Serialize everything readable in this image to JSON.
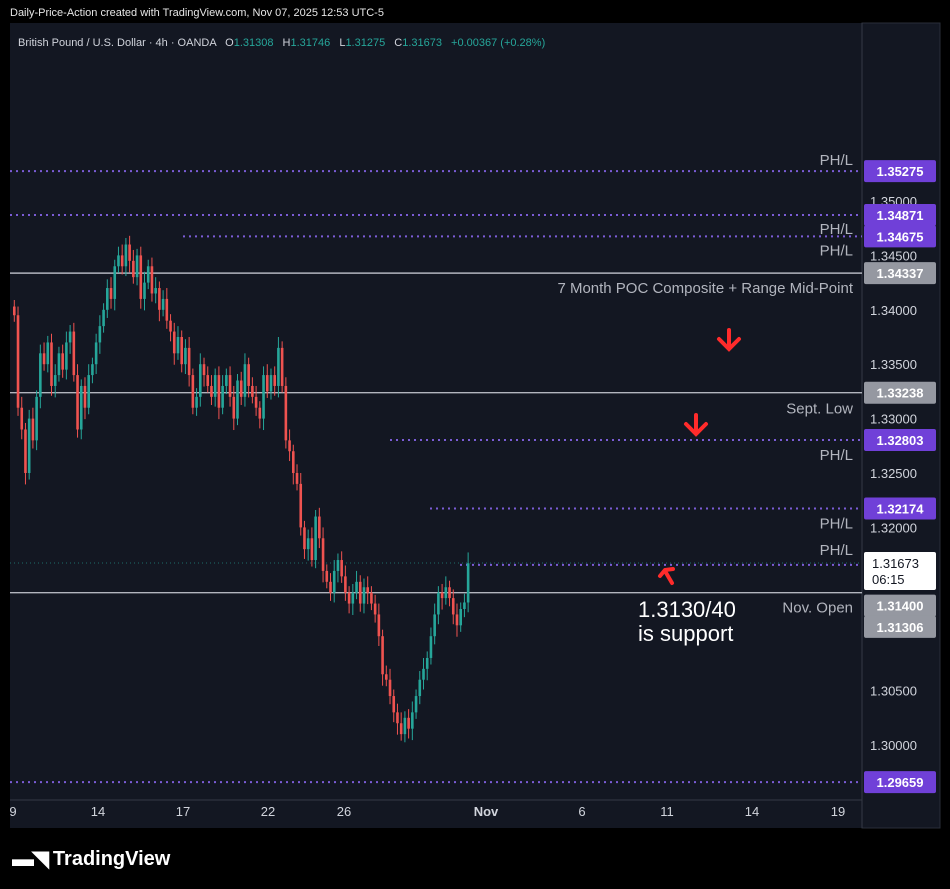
{
  "header": {
    "caption": "Daily-Price-Action created with TradingView.com, Nov 07, 2025 12:53 UTC-5"
  },
  "legend": {
    "symbol": "British Pound / U.S. Dollar · 4h · OANDA",
    "o_label": "O",
    "o_val": "1.31308",
    "h_label": "H",
    "h_val": "1.31746",
    "l_label": "L",
    "l_val": "1.31275",
    "c_label": "C",
    "c_val": "1.31673",
    "change": "+0.00367 (+0.28%)"
  },
  "footer": {
    "brand": "TradingView"
  },
  "colors": {
    "background": "#131722",
    "up": "#26a69a",
    "down": "#ef5350",
    "level_purple": "#7b5cd6",
    "level_gray": "#b2b5be",
    "annotation_red": "#ff2b2b"
  },
  "chart_data": {
    "type": "candlestick",
    "timeframe": "4h",
    "ylim": [
      1.2955,
      1.3535
    ],
    "yticks": [
      "1.35000",
      "1.34500",
      "1.34000",
      "1.33500",
      "1.33000",
      "1.32500",
      "1.32000",
      "1.30500",
      "1.30000"
    ],
    "xticks": [
      "9",
      "14",
      "17",
      "22",
      "26",
      "Nov",
      "6",
      "11",
      "14",
      "19"
    ],
    "current_price": "1.31673",
    "countdown": "06:15",
    "levels": [
      {
        "price": 1.35275,
        "label": "1.35275",
        "note": "PH/L",
        "style": "purple-dotted"
      },
      {
        "price": 1.34871,
        "label": "1.34871",
        "note": "PH/L",
        "style": "purple-dotted"
      },
      {
        "price": 1.34675,
        "label": "1.34675",
        "note": "PH/L",
        "style": "purple-dotted"
      },
      {
        "price": 1.34337,
        "label": "1.34337",
        "note": "7 Month POC Composite + Range Mid-Point",
        "style": "gray-solid"
      },
      {
        "price": 1.33238,
        "label": "1.33238",
        "note": "Sept. Low",
        "style": "gray-solid"
      },
      {
        "price": 1.32803,
        "label": "1.32803",
        "note": "PH/L",
        "style": "purple-dotted"
      },
      {
        "price": 1.32174,
        "label": "1.32174",
        "note": "PH/L",
        "style": "purple-dotted"
      },
      {
        "price": 1.31655,
        "label": "1.31655",
        "note": "PH/L",
        "style": "purple-dotted"
      },
      {
        "price": 1.314,
        "label": "1.31400",
        "note": "Nov. Open",
        "style": "gray-solid"
      },
      {
        "price": 1.31306,
        "label": "1.31306",
        "note": "",
        "style": "gray-box"
      },
      {
        "price": 1.29659,
        "label": "1.29659",
        "note": "",
        "style": "purple-dotted"
      }
    ],
    "annotation": [
      "1.3130/40",
      "is support"
    ],
    "closes": [
      1.3395,
      1.331,
      1.329,
      1.325,
      1.33,
      1.328,
      1.332,
      1.336,
      1.335,
      1.337,
      1.333,
      1.334,
      1.336,
      1.3345,
      1.337,
      1.338,
      1.334,
      1.329,
      1.333,
      1.331,
      1.334,
      1.335,
      1.337,
      1.3385,
      1.34,
      1.342,
      1.341,
      1.344,
      1.345,
      1.344,
      1.346,
      1.3445,
      1.343,
      1.345,
      1.341,
      1.3425,
      1.344,
      1.3415,
      1.342,
      1.34,
      1.341,
      1.339,
      1.338,
      1.336,
      1.3375,
      1.335,
      1.3365,
      1.334,
      1.331,
      1.332,
      1.335,
      1.334,
      1.333,
      1.332,
      1.334,
      1.331,
      1.333,
      1.334,
      1.332,
      1.33,
      1.3335,
      1.332,
      1.335,
      1.333,
      1.332,
      1.331,
      1.33,
      1.334,
      1.3325,
      1.334,
      1.333,
      1.3365,
      1.333,
      1.328,
      1.327,
      1.325,
      1.324,
      1.32,
      1.318,
      1.319,
      1.317,
      1.321,
      1.319,
      1.316,
      1.315,
      1.314,
      1.316,
      1.317,
      1.3155,
      1.314,
      1.313,
      1.314,
      1.315,
      1.313,
      1.3145,
      1.314,
      1.313,
      1.312,
      1.31,
      1.3065,
      1.306,
      1.3045,
      1.303,
      1.302,
      1.301,
      1.3025,
      1.3015,
      1.303,
      1.3045,
      1.306,
      1.307,
      1.308,
      1.31,
      1.312,
      1.314,
      1.3135,
      1.3145,
      1.3135,
      1.312,
      1.311,
      1.3125,
      1.3131,
      1.3167
    ]
  }
}
